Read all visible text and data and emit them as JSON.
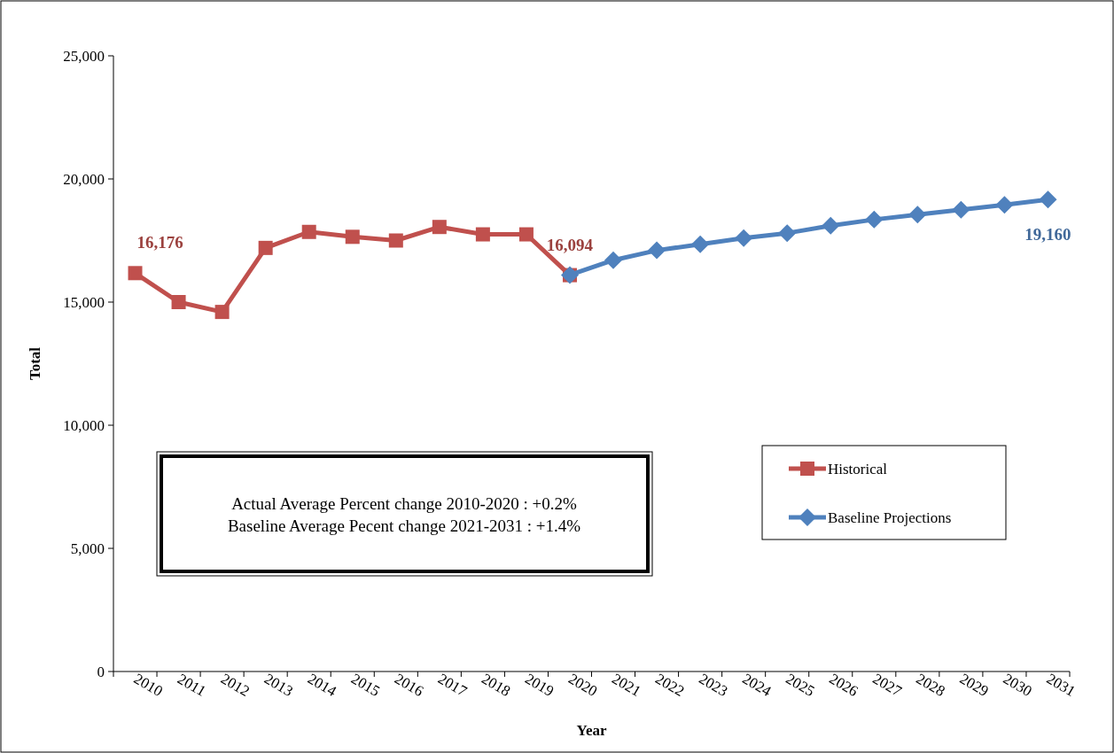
{
  "chart_data": {
    "type": "line",
    "xlabel": "Year",
    "ylabel": "Total",
    "categories": [
      "2010",
      "2011",
      "2012",
      "2013",
      "2014",
      "2015",
      "2016",
      "2017",
      "2018",
      "2019",
      "2020",
      "2021",
      "2022",
      "2023",
      "2024",
      "2025",
      "2026",
      "2027",
      "2028",
      "2029",
      "2030",
      "2031"
    ],
    "series": [
      {
        "name": "Historical",
        "color": "#c0504d",
        "marker": "square",
        "values": [
          16176,
          15000,
          14600,
          17200,
          17850,
          17650,
          17500,
          18050,
          17750,
          17750,
          16094,
          null,
          null,
          null,
          null,
          null,
          null,
          null,
          null,
          null,
          null,
          null
        ],
        "value_labels": [
          "16,176",
          null,
          null,
          null,
          null,
          null,
          null,
          null,
          null,
          null,
          "16,094",
          null,
          null,
          null,
          null,
          null,
          null,
          null,
          null,
          null,
          null,
          null
        ]
      },
      {
        "name": "Baseline Projections",
        "color": "#4f81bd",
        "marker": "diamond",
        "values": [
          null,
          null,
          null,
          null,
          null,
          null,
          null,
          null,
          null,
          null,
          16100,
          16700,
          17100,
          17350,
          17600,
          17800,
          18100,
          18350,
          18550,
          18750,
          18950,
          19160
        ],
        "value_labels": [
          null,
          null,
          null,
          null,
          null,
          null,
          null,
          null,
          null,
          null,
          null,
          null,
          null,
          null,
          null,
          null,
          null,
          null,
          null,
          null,
          null,
          "19,160"
        ]
      }
    ],
    "ylim": [
      0,
      25000
    ],
    "yticks": [
      {
        "value": 0,
        "label": "0"
      },
      {
        "value": 5000,
        "label": "5,000"
      },
      {
        "value": 10000,
        "label": "10,000"
      },
      {
        "value": 15000,
        "label": "15,000"
      },
      {
        "value": 20000,
        "label": "20,000"
      },
      {
        "value": 25000,
        "label": "25,000"
      }
    ],
    "legend": "right",
    "grid": false,
    "annotations": [
      "Actual Average Percent change 2010-2020 : +0.2%",
      "Baseline Average Pecent change 2021-2031 : +1.4%"
    ]
  }
}
